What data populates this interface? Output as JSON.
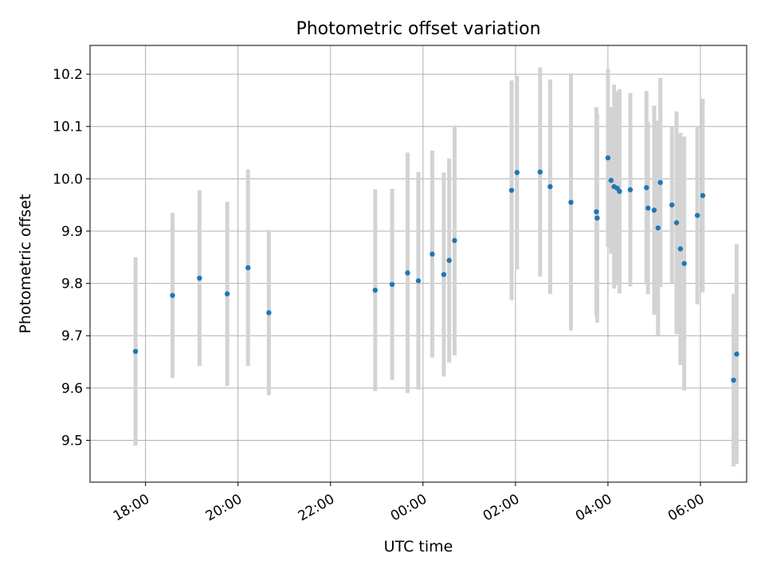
{
  "chart_data": {
    "type": "scatter",
    "title": "Photometric offset variation",
    "xlabel": "UTC time",
    "ylabel": "Photometric offset",
    "x_is_time": true,
    "x_ticks": [
      "18:00",
      "20:00",
      "22:00",
      "00:00",
      "02:00",
      "04:00",
      "06:00"
    ],
    "y_ticks": [
      9.5,
      9.6,
      9.7,
      9.8,
      9.9,
      10.0,
      10.1,
      10.2
    ],
    "ylim": [
      9.42,
      10.255
    ],
    "grid": true,
    "legend": false,
    "colors": {
      "marker": "#1f77b4",
      "errorbar": "#d3d3d3",
      "grid": "#b0b0b0",
      "axes": "#000000"
    },
    "series": [
      {
        "x": [
          "17:47",
          "18:35",
          "19:10",
          "19:46",
          "20:13",
          "20:40",
          "22:58",
          "23:20",
          "23:40",
          "23:54",
          "00:12",
          "00:27",
          "00:34",
          "00:41",
          "01:55",
          "02:02",
          "02:32",
          "02:45",
          "03:12",
          "03:45",
          "03:46",
          "04:00",
          "04:04",
          "04:08",
          "04:12",
          "04:15",
          "04:29",
          "04:50",
          "04:52",
          "05:00",
          "05:05",
          "05:08",
          "05:23",
          "05:29",
          "05:34",
          "05:39",
          "05:56",
          "06:03",
          "06:43",
          "06:47"
        ],
        "y": [
          9.67,
          9.777,
          9.81,
          9.78,
          9.83,
          9.744,
          9.787,
          9.798,
          9.82,
          9.805,
          9.856,
          9.817,
          9.844,
          9.882,
          9.978,
          10.012,
          10.013,
          9.985,
          9.955,
          9.937,
          9.925,
          10.04,
          9.997,
          9.985,
          9.982,
          9.976,
          9.979,
          9.983,
          9.944,
          9.94,
          9.906,
          9.993,
          9.95,
          9.916,
          9.866,
          9.838,
          9.93,
          9.968,
          9.615,
          9.665
        ],
        "y_err": [
          0.18,
          0.158,
          0.168,
          0.176,
          0.188,
          0.158,
          0.193,
          0.183,
          0.23,
          0.208,
          0.198,
          0.195,
          0.195,
          0.22,
          0.21,
          0.185,
          0.2,
          0.205,
          0.245,
          0.2,
          0.2,
          0.17,
          0.14,
          0.195,
          0.185,
          0.195,
          0.185,
          0.185,
          0.165,
          0.2,
          0.205,
          0.2,
          0.15,
          0.213,
          0.222,
          0.243,
          0.17,
          0.185,
          0.165,
          0.21
        ]
      }
    ]
  }
}
